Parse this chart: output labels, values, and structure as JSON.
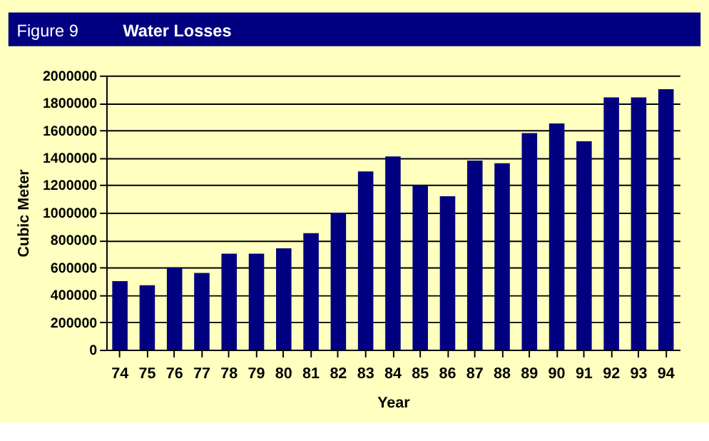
{
  "chart_data": {
    "type": "bar",
    "title": "Water Losses",
    "annotations": [
      "Figure 9"
    ],
    "xlabel": "Year",
    "ylabel": "Cubic Meter",
    "categories": [
      "74",
      "75",
      "76",
      "77",
      "78",
      "79",
      "80",
      "81",
      "82",
      "83",
      "84",
      "85",
      "86",
      "87",
      "88",
      "89",
      "90",
      "91",
      "92",
      "93",
      "94"
    ],
    "values": [
      500000,
      470000,
      600000,
      560000,
      700000,
      700000,
      740000,
      850000,
      1000000,
      1300000,
      1410000,
      1200000,
      1120000,
      1380000,
      1360000,
      1580000,
      1650000,
      1520000,
      1840000,
      1840000,
      1900000
    ],
    "color": "#000080",
    "ylim": [
      0,
      2000000
    ],
    "yticks": [
      0,
      200000,
      400000,
      600000,
      800000,
      1000000,
      1200000,
      1400000,
      1600000,
      1800000,
      2000000
    ],
    "grid": "y"
  }
}
